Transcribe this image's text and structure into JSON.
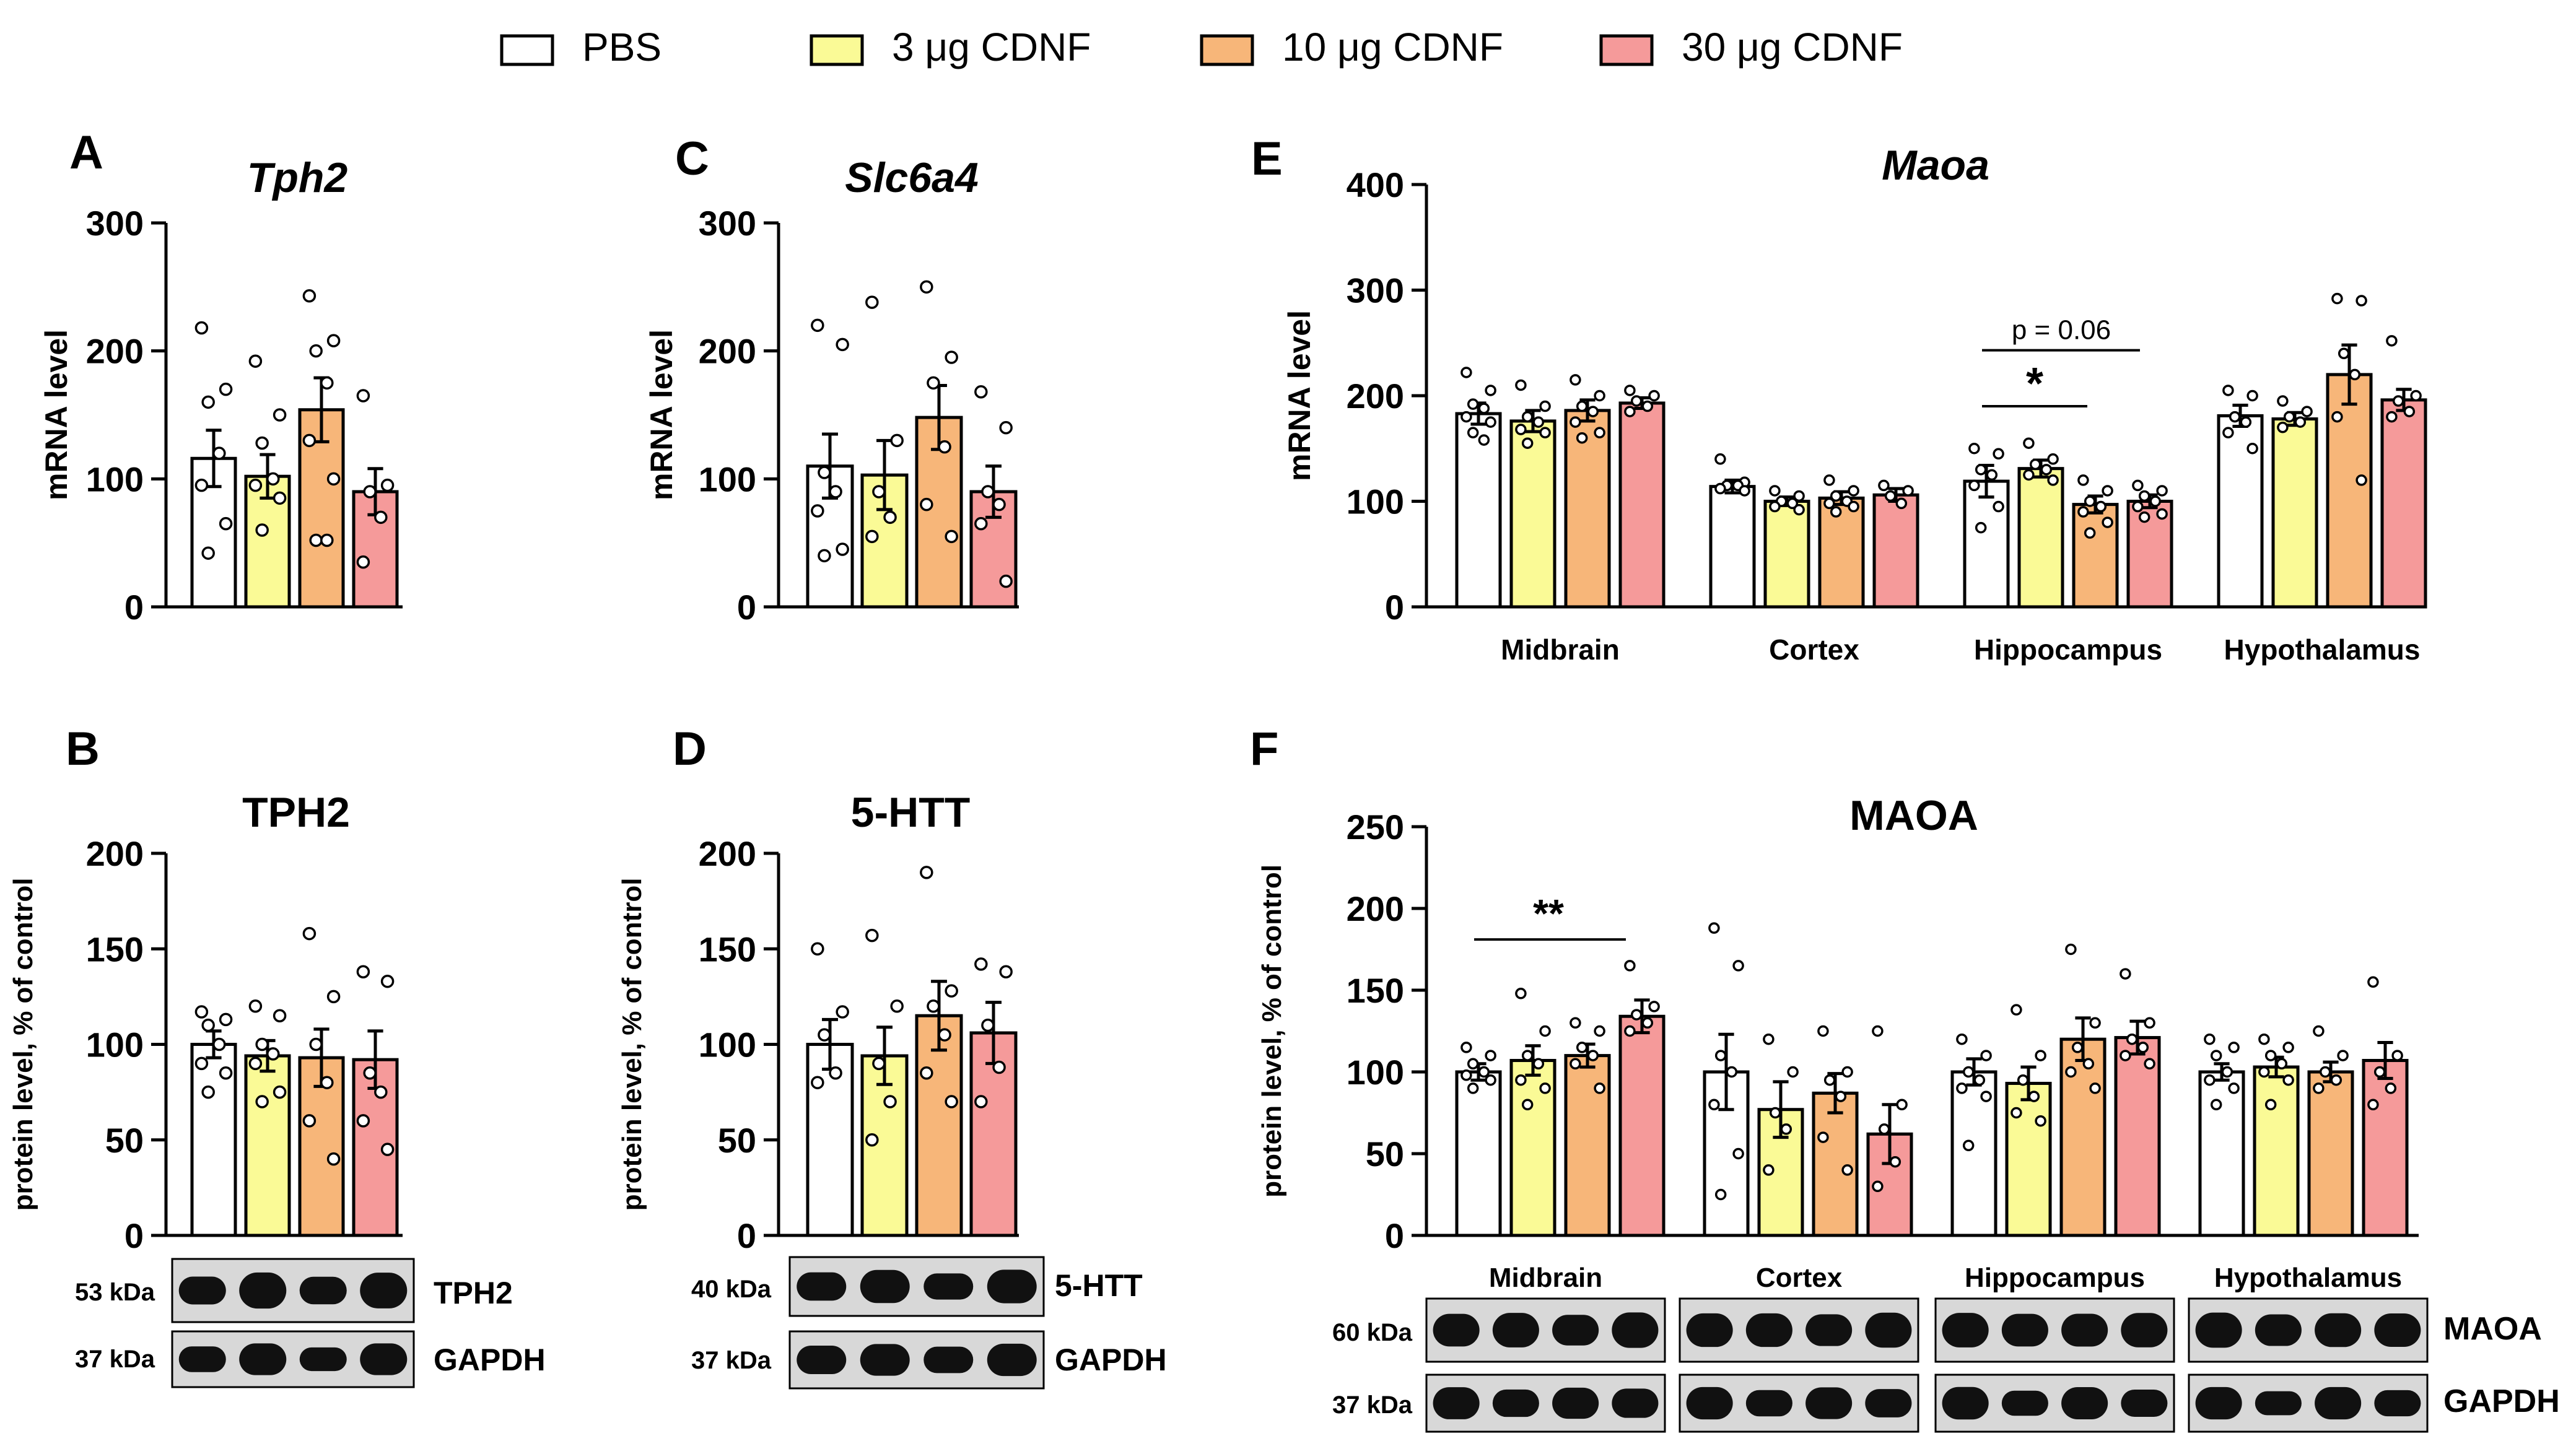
{
  "legend": [
    {
      "label": "PBS",
      "color": "#ffffff"
    },
    {
      "label": "3 μg CDNF",
      "color": "#fafa96"
    },
    {
      "label": "10 μg CDNF",
      "color": "#f7b679"
    },
    {
      "label": "30 μg CDNF",
      "color": "#f59a9a"
    }
  ],
  "chart_data": [
    {
      "panel": "A",
      "type": "bar",
      "title": "Tph2",
      "ylabel": "mRNA level",
      "ylim": [
        0,
        300
      ],
      "yticks": [
        0,
        100,
        200,
        300
      ],
      "categories": [
        "PBS",
        "3 μg CDNF",
        "10 μg CDNF",
        "30 μg CDNF"
      ],
      "values": [
        116,
        102,
        154,
        90
      ],
      "errors": [
        22,
        17,
        25,
        18
      ],
      "points": [
        [
          218,
          170,
          160,
          120,
          95,
          65,
          42
        ],
        [
          192,
          150,
          128,
          100,
          95,
          85,
          60
        ],
        [
          243,
          208,
          200,
          175,
          130,
          100,
          52,
          52
        ],
        [
          165,
          95,
          90,
          70,
          35
        ]
      ]
    },
    {
      "panel": "C",
      "type": "bar",
      "title": "Slc6a4",
      "ylabel": "mRNA level",
      "ylim": [
        0,
        300
      ],
      "yticks": [
        0,
        100,
        200,
        300
      ],
      "categories": [
        "PBS",
        "3 μg CDNF",
        "10 μg CDNF",
        "30 μg CDNF"
      ],
      "values": [
        110,
        103,
        148,
        90
      ],
      "errors": [
        25,
        27,
        25,
        20
      ],
      "points": [
        [
          220,
          205,
          105,
          90,
          75,
          45,
          40
        ],
        [
          238,
          130,
          90,
          70,
          55
        ],
        [
          250,
          195,
          175,
          125,
          80,
          55
        ],
        [
          168,
          140,
          90,
          80,
          65,
          20
        ]
      ]
    },
    {
      "panel": "E",
      "type": "bar",
      "title": "Maoa",
      "ylabel": "mRNA level",
      "ylim": [
        0,
        400
      ],
      "yticks": [
        0,
        100,
        200,
        300,
        400
      ],
      "categories": [
        "Midbrain",
        "Cortex",
        "Hippocampus",
        "Hypothalamus"
      ],
      "series": [
        {
          "name": "PBS",
          "values": [
            183,
            114,
            119,
            181
          ],
          "errors": [
            10,
            6,
            15,
            10
          ]
        },
        {
          "name": "3 μg CDNF",
          "values": [
            176,
            100,
            131,
            178
          ],
          "errors": [
            10,
            4,
            8,
            6
          ]
        },
        {
          "name": "10 μg CDNF",
          "values": [
            186,
            103,
            97,
            220
          ],
          "errors": [
            10,
            6,
            8,
            28
          ]
        },
        {
          "name": "30 μg CDNF",
          "values": [
            193,
            106,
            100,
            196
          ],
          "errors": [
            5,
            6,
            6,
            10
          ]
        }
      ],
      "points": [
        [
          [
            222,
            205,
            192,
            188,
            180,
            175,
            165,
            158
          ],
          [
            210,
            190,
            180,
            175,
            168,
            165,
            155
          ],
          [
            215,
            200,
            190,
            185,
            175,
            165,
            160
          ],
          [
            205,
            200,
            195,
            190,
            185
          ]
        ],
        [
          [
            140,
            118,
            115,
            115,
            112,
            110
          ],
          [
            110,
            105,
            100,
            98,
            95,
            92
          ],
          [
            120,
            110,
            105,
            100,
            98,
            95,
            90
          ],
          [
            115,
            110,
            105,
            98
          ]
        ],
        [
          [
            150,
            145,
            130,
            125,
            115,
            95,
            75
          ],
          [
            155,
            140,
            135,
            130,
            125,
            120
          ],
          [
            120,
            110,
            100,
            95,
            90,
            80,
            70
          ],
          [
            115,
            110,
            105,
            100,
            95,
            88,
            85
          ]
        ],
        [
          [
            205,
            200,
            180,
            175,
            165,
            150
          ],
          [
            195,
            185,
            180,
            175,
            170
          ],
          [
            292,
            290,
            240,
            220,
            180,
            120
          ],
          [
            252,
            200,
            195,
            185,
            180
          ]
        ]
      ],
      "annotations": [
        {
          "text": "p = 0.06"
        },
        {
          "text": "*"
        }
      ]
    },
    {
      "panel": "B",
      "type": "bar",
      "title": "TPH2",
      "ylabel": "protein level, % of control",
      "ylim": [
        0,
        200
      ],
      "yticks": [
        0,
        50,
        100,
        150,
        200
      ],
      "categories": [
        "PBS",
        "3 μg CDNF",
        "10 μg CDNF",
        "30 μg CDNF"
      ],
      "values": [
        100,
        94,
        93,
        92
      ],
      "errors": [
        7,
        8,
        15,
        15
      ],
      "points": [
        [
          117,
          113,
          110,
          100,
          90,
          85,
          75
        ],
        [
          120,
          115,
          100,
          95,
          90,
          75,
          70
        ],
        [
          158,
          125,
          100,
          80,
          60,
          40
        ],
        [
          138,
          133,
          85,
          75,
          60,
          45
        ]
      ],
      "blot": {
        "marker_top": "53 kDa",
        "marker_bottom": "37 kDa",
        "label_top": "TPH2",
        "label_bottom": "GAPDH"
      }
    },
    {
      "panel": "D",
      "type": "bar",
      "title": "5-HTT",
      "ylabel": "protein level, % of control",
      "ylim": [
        0,
        200
      ],
      "yticks": [
        0,
        50,
        100,
        150,
        200
      ],
      "categories": [
        "PBS",
        "3 μg CDNF",
        "10 μg CDNF",
        "30 μg CDNF"
      ],
      "values": [
        100,
        94,
        115,
        106
      ],
      "errors": [
        13,
        15,
        18,
        16
      ],
      "points": [
        [
          150,
          117,
          105,
          85,
          80
        ],
        [
          157,
          120,
          90,
          70,
          50
        ],
        [
          190,
          128,
          120,
          105,
          85,
          70
        ],
        [
          142,
          138,
          110,
          88,
          70
        ]
      ],
      "blot": {
        "marker_top": "40 kDa",
        "marker_bottom": "37 kDa",
        "label_top": "5-HTT",
        "label_bottom": "GAPDH"
      }
    },
    {
      "panel": "F",
      "type": "bar",
      "title": "MAOA",
      "ylabel": "protein level, % of control",
      "ylim": [
        0,
        250
      ],
      "yticks": [
        0,
        50,
        100,
        150,
        200,
        250
      ],
      "categories": [
        "Midbrain",
        "Cortex",
        "Hippocampus",
        "Hypothalamus"
      ],
      "series": [
        {
          "name": "PBS",
          "values": [
            100,
            100,
            100,
            100
          ],
          "errors": [
            5,
            23,
            8,
            5
          ]
        },
        {
          "name": "3 μg CDNF",
          "values": [
            107,
            77,
            93,
            103
          ],
          "errors": [
            9,
            17,
            10,
            6
          ]
        },
        {
          "name": "10 μg CDNF",
          "values": [
            110,
            87,
            120,
            100
          ],
          "errors": [
            7,
            12,
            13,
            6
          ]
        },
        {
          "name": "30 μg CDNF",
          "values": [
            134,
            62,
            121,
            107
          ],
          "errors": [
            10,
            18,
            10,
            11
          ]
        }
      ],
      "points": [
        [
          [
            115,
            110,
            105,
            100,
            98,
            95,
            90
          ],
          [
            148,
            125,
            110,
            105,
            95,
            90,
            80
          ],
          [
            130,
            125,
            115,
            110,
            105,
            90
          ],
          [
            165,
            140,
            135,
            130,
            125
          ]
        ],
        [
          [
            188,
            165,
            110,
            100,
            80,
            50,
            25
          ],
          [
            120,
            100,
            75,
            65,
            40
          ],
          [
            125,
            100,
            95,
            85,
            60,
            40
          ],
          [
            125,
            80,
            65,
            45,
            30
          ]
        ],
        [
          [
            120,
            110,
            100,
            95,
            90,
            85,
            55
          ],
          [
            138,
            110,
            95,
            85,
            75,
            70
          ],
          [
            175,
            130,
            115,
            105,
            100,
            90
          ],
          [
            160,
            130,
            120,
            115,
            110,
            105
          ]
        ],
        [
          [
            120,
            115,
            110,
            100,
            95,
            90,
            80
          ],
          [
            120,
            115,
            110,
            105,
            100,
            95,
            80
          ],
          [
            125,
            110,
            100,
            95,
            90
          ],
          [
            155,
            110,
            100,
            90,
            80
          ]
        ]
      ],
      "annotations": [
        {
          "text": "**"
        }
      ],
      "blot": {
        "marker_top": "60 kDa",
        "marker_bottom": "37 kDa",
        "label_top": "MAOA",
        "label_bottom": "GAPDH",
        "region_labels": [
          "Midbrain",
          "Cortex",
          "Hippocampus",
          "Hypothalamus"
        ]
      }
    }
  ]
}
